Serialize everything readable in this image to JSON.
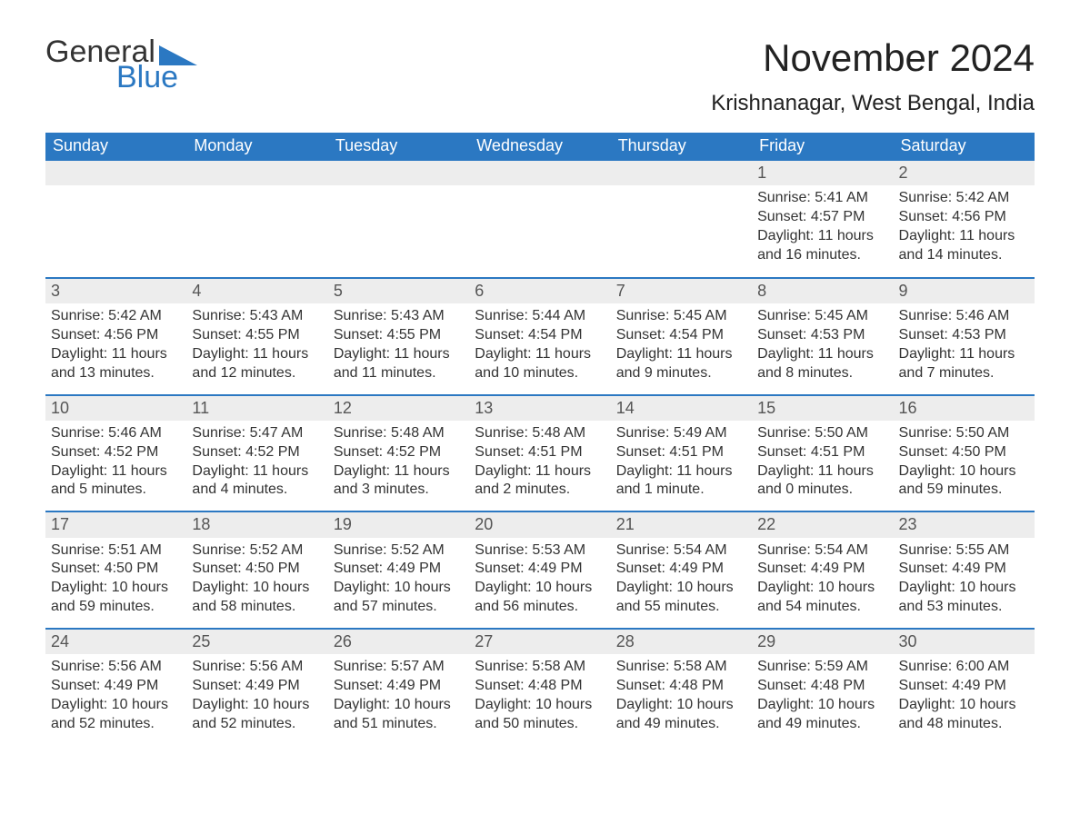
{
  "logo": {
    "word1": "General",
    "word2": "Blue"
  },
  "title": "November 2024",
  "location": "Krishnanagar, West Bengal, India",
  "colors": {
    "header_bg": "#2b78c2",
    "header_text": "#ffffff",
    "daynum_bg": "#ededed",
    "body_text": "#333333",
    "rule": "#2b78c2"
  },
  "fonts": {
    "title_size_pt": 32,
    "location_size_pt": 18,
    "dayhead_size_pt": 14,
    "body_size_pt": 12
  },
  "day_headers": [
    "Sunday",
    "Monday",
    "Tuesday",
    "Wednesday",
    "Thursday",
    "Friday",
    "Saturday"
  ],
  "labels": {
    "sunrise": "Sunrise:",
    "sunset": "Sunset:",
    "daylight": "Daylight:"
  },
  "weeks": [
    [
      null,
      null,
      null,
      null,
      null,
      {
        "n": "1",
        "sr": "5:41 AM",
        "ss": "4:57 PM",
        "dl": "11 hours and 16 minutes."
      },
      {
        "n": "2",
        "sr": "5:42 AM",
        "ss": "4:56 PM",
        "dl": "11 hours and 14 minutes."
      }
    ],
    [
      {
        "n": "3",
        "sr": "5:42 AM",
        "ss": "4:56 PM",
        "dl": "11 hours and 13 minutes."
      },
      {
        "n": "4",
        "sr": "5:43 AM",
        "ss": "4:55 PM",
        "dl": "11 hours and 12 minutes."
      },
      {
        "n": "5",
        "sr": "5:43 AM",
        "ss": "4:55 PM",
        "dl": "11 hours and 11 minutes."
      },
      {
        "n": "6",
        "sr": "5:44 AM",
        "ss": "4:54 PM",
        "dl": "11 hours and 10 minutes."
      },
      {
        "n": "7",
        "sr": "5:45 AM",
        "ss": "4:54 PM",
        "dl": "11 hours and 9 minutes."
      },
      {
        "n": "8",
        "sr": "5:45 AM",
        "ss": "4:53 PM",
        "dl": "11 hours and 8 minutes."
      },
      {
        "n": "9",
        "sr": "5:46 AM",
        "ss": "4:53 PM",
        "dl": "11 hours and 7 minutes."
      }
    ],
    [
      {
        "n": "10",
        "sr": "5:46 AM",
        "ss": "4:52 PM",
        "dl": "11 hours and 5 minutes."
      },
      {
        "n": "11",
        "sr": "5:47 AM",
        "ss": "4:52 PM",
        "dl": "11 hours and 4 minutes."
      },
      {
        "n": "12",
        "sr": "5:48 AM",
        "ss": "4:52 PM",
        "dl": "11 hours and 3 minutes."
      },
      {
        "n": "13",
        "sr": "5:48 AM",
        "ss": "4:51 PM",
        "dl": "11 hours and 2 minutes."
      },
      {
        "n": "14",
        "sr": "5:49 AM",
        "ss": "4:51 PM",
        "dl": "11 hours and 1 minute."
      },
      {
        "n": "15",
        "sr": "5:50 AM",
        "ss": "4:51 PM",
        "dl": "11 hours and 0 minutes."
      },
      {
        "n": "16",
        "sr": "5:50 AM",
        "ss": "4:50 PM",
        "dl": "10 hours and 59 minutes."
      }
    ],
    [
      {
        "n": "17",
        "sr": "5:51 AM",
        "ss": "4:50 PM",
        "dl": "10 hours and 59 minutes."
      },
      {
        "n": "18",
        "sr": "5:52 AM",
        "ss": "4:50 PM",
        "dl": "10 hours and 58 minutes."
      },
      {
        "n": "19",
        "sr": "5:52 AM",
        "ss": "4:49 PM",
        "dl": "10 hours and 57 minutes."
      },
      {
        "n": "20",
        "sr": "5:53 AM",
        "ss": "4:49 PM",
        "dl": "10 hours and 56 minutes."
      },
      {
        "n": "21",
        "sr": "5:54 AM",
        "ss": "4:49 PM",
        "dl": "10 hours and 55 minutes."
      },
      {
        "n": "22",
        "sr": "5:54 AM",
        "ss": "4:49 PM",
        "dl": "10 hours and 54 minutes."
      },
      {
        "n": "23",
        "sr": "5:55 AM",
        "ss": "4:49 PM",
        "dl": "10 hours and 53 minutes."
      }
    ],
    [
      {
        "n": "24",
        "sr": "5:56 AM",
        "ss": "4:49 PM",
        "dl": "10 hours and 52 minutes."
      },
      {
        "n": "25",
        "sr": "5:56 AM",
        "ss": "4:49 PM",
        "dl": "10 hours and 52 minutes."
      },
      {
        "n": "26",
        "sr": "5:57 AM",
        "ss": "4:49 PM",
        "dl": "10 hours and 51 minutes."
      },
      {
        "n": "27",
        "sr": "5:58 AM",
        "ss": "4:48 PM",
        "dl": "10 hours and 50 minutes."
      },
      {
        "n": "28",
        "sr": "5:58 AM",
        "ss": "4:48 PM",
        "dl": "10 hours and 49 minutes."
      },
      {
        "n": "29",
        "sr": "5:59 AM",
        "ss": "4:48 PM",
        "dl": "10 hours and 49 minutes."
      },
      {
        "n": "30",
        "sr": "6:00 AM",
        "ss": "4:49 PM",
        "dl": "10 hours and 48 minutes."
      }
    ]
  ]
}
